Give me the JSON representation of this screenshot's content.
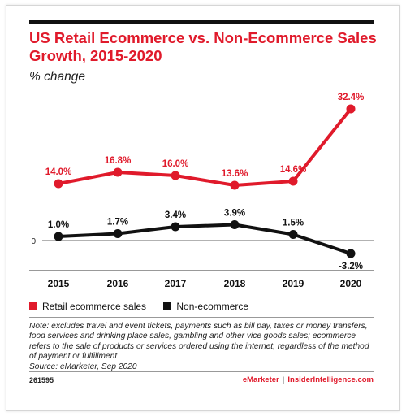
{
  "header": {
    "title": "US Retail Ecommerce vs. Non-Ecommerce Sales Growth, 2015-2020",
    "subtitle": "% change"
  },
  "chart_data": {
    "type": "line",
    "x": [
      "2015",
      "2016",
      "2017",
      "2018",
      "2019",
      "2020"
    ],
    "series": [
      {
        "name": "Retail ecommerce sales",
        "color": "#e01a2b",
        "values": [
          14.0,
          16.8,
          16.0,
          13.6,
          14.6,
          32.4
        ],
        "labels": [
          "14.0%",
          "16.8%",
          "16.0%",
          "13.6%",
          "14.6%",
          "32.4%"
        ]
      },
      {
        "name": "Non-ecommerce",
        "color": "#111111",
        "values": [
          1.0,
          1.7,
          3.4,
          3.9,
          1.5,
          -3.2
        ],
        "labels": [
          "1.0%",
          "1.7%",
          "3.4%",
          "3.9%",
          "1.5%",
          "-3.2%"
        ]
      }
    ],
    "zero_label": "0"
  },
  "legend": [
    {
      "label": "Retail ecommerce sales",
      "color": "#e01a2b"
    },
    {
      "label": "Non-ecommerce",
      "color": "#111111"
    }
  ],
  "note": {
    "text": "Note: excludes travel and event tickets, payments such as bill pay, taxes or money transfers, food services and drinking place sales, gambling and other vice goods sales; ecommerce refers to the sale of products or services ordered using the internet, regardless of the method of payment or fulfillment",
    "source": "Source: eMarketer, Sep 2020"
  },
  "footer": {
    "id": "261595",
    "brand_a": "eMarketer",
    "brand_sep": "|",
    "brand_b": "InsiderIntelligence.com"
  }
}
